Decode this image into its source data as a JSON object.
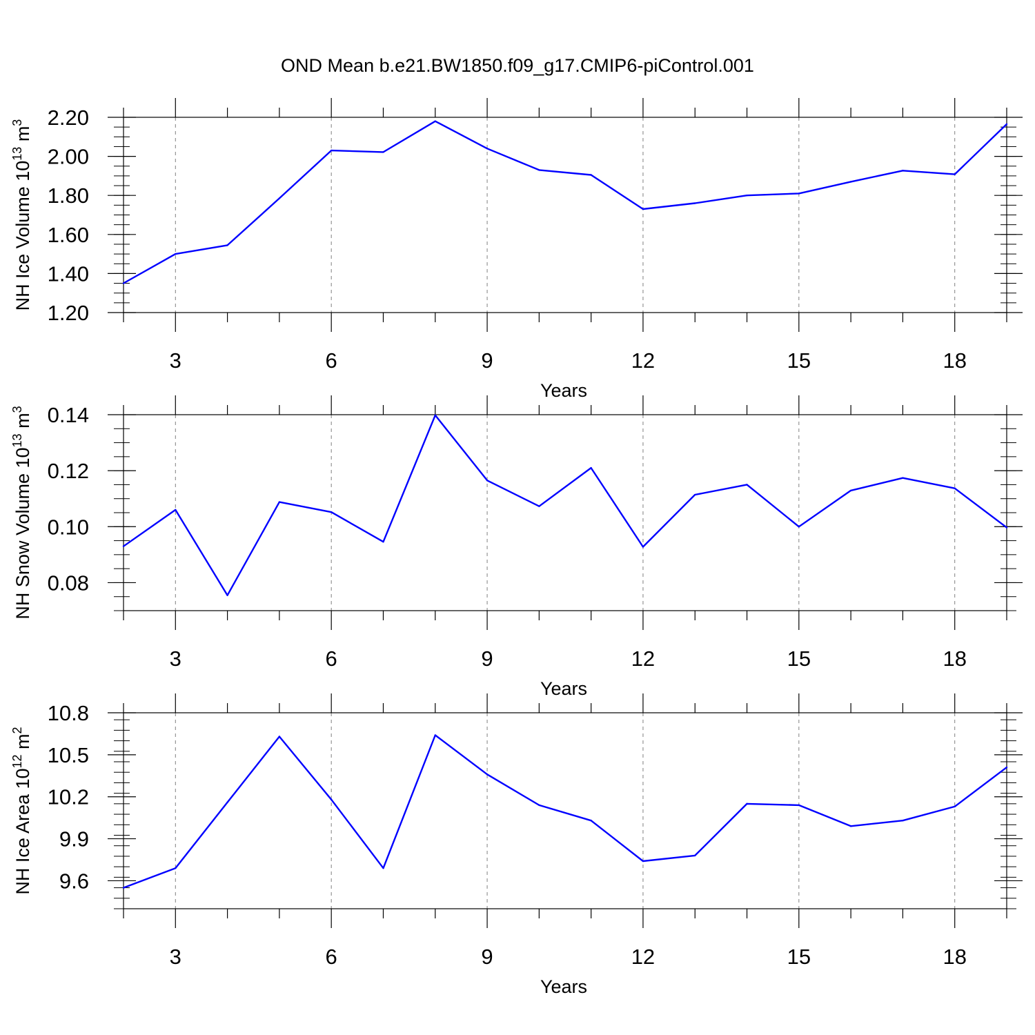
{
  "title": "OND Mean b.e21.BW1850.f09_g17.CMIP6-piControl.001",
  "colors": {
    "line": "#0000ff",
    "axis": "#000000",
    "grid": "#7f7f7f"
  },
  "chart_data": [
    {
      "type": "line",
      "xlabel": "Years",
      "ylabel_text": "NH Ice Volume 10",
      "ylabel_exp": "13",
      "ylabel_unit": " m",
      "ylabel_unit_exp": "3",
      "xlim": [
        2,
        19
      ],
      "ylim": [
        1.2,
        2.2
      ],
      "xticks": [
        3,
        6,
        9,
        12,
        15,
        18
      ],
      "yticks": [
        1.2,
        1.4,
        1.6,
        1.8,
        2.0,
        2.2
      ],
      "ytick_labels": [
        "1.20",
        "1.40",
        "1.60",
        "1.80",
        "2.00",
        "2.20"
      ],
      "y_minor_step": 0.05,
      "grid": "vertical dashed at major x ticks",
      "x": [
        2,
        3,
        4,
        5,
        6,
        7,
        8,
        9,
        10,
        11,
        12,
        13,
        14,
        15,
        16,
        17,
        18,
        19
      ],
      "values": [
        1.35,
        1.5,
        1.545,
        1.785,
        2.03,
        2.022,
        2.18,
        2.04,
        1.93,
        1.905,
        1.73,
        1.76,
        1.8,
        1.81,
        1.87,
        1.927,
        1.908,
        2.165
      ]
    },
    {
      "type": "line",
      "xlabel": "Years",
      "ylabel_text": "NH Snow Volume 10",
      "ylabel_exp": "13",
      "ylabel_unit": " m",
      "ylabel_unit_exp": "3",
      "xlim": [
        2,
        19
      ],
      "ylim": [
        0.07,
        0.14
      ],
      "xticks": [
        3,
        6,
        9,
        12,
        15,
        18
      ],
      "yticks": [
        0.08,
        0.1,
        0.12,
        0.14
      ],
      "ytick_labels": [
        "0.08",
        "0.10",
        "0.12",
        "0.14"
      ],
      "y_minor_step": 0.005,
      "grid": "vertical dashed at major x ticks",
      "x": [
        2,
        3,
        4,
        5,
        6,
        7,
        8,
        9,
        10,
        11,
        12,
        13,
        14,
        15,
        16,
        17,
        18,
        19
      ],
      "values": [
        0.093,
        0.106,
        0.0755,
        0.1088,
        0.1052,
        0.0946,
        0.1398,
        0.1165,
        0.1073,
        0.121,
        0.0928,
        0.1114,
        0.115,
        0.1,
        0.1129,
        0.1174,
        0.1137,
        0.0997
      ]
    },
    {
      "type": "line",
      "xlabel": "Years",
      "ylabel_text": "NH Ice Area 10",
      "ylabel_exp": "12",
      "ylabel_unit": " m",
      "ylabel_unit_exp": "2",
      "xlim": [
        2,
        19
      ],
      "ylim": [
        9.4,
        10.8
      ],
      "xticks": [
        3,
        6,
        9,
        12,
        15,
        18
      ],
      "yticks": [
        9.6,
        9.9,
        10.2,
        10.5,
        10.8
      ],
      "ytick_labels": [
        "9.6",
        "9.9",
        "10.2",
        "10.5",
        "10.8"
      ],
      "y_minor_step": 0.075,
      "grid": "vertical dashed at major x ticks",
      "x": [
        2,
        3,
        4,
        5,
        6,
        7,
        8,
        9,
        10,
        11,
        12,
        13,
        14,
        15,
        16,
        17,
        18,
        19
      ],
      "values": [
        9.55,
        9.69,
        10.16,
        10.63,
        10.18,
        9.69,
        10.64,
        10.36,
        10.14,
        10.03,
        9.74,
        9.78,
        10.15,
        10.14,
        9.99,
        10.03,
        10.13,
        10.41
      ]
    }
  ]
}
